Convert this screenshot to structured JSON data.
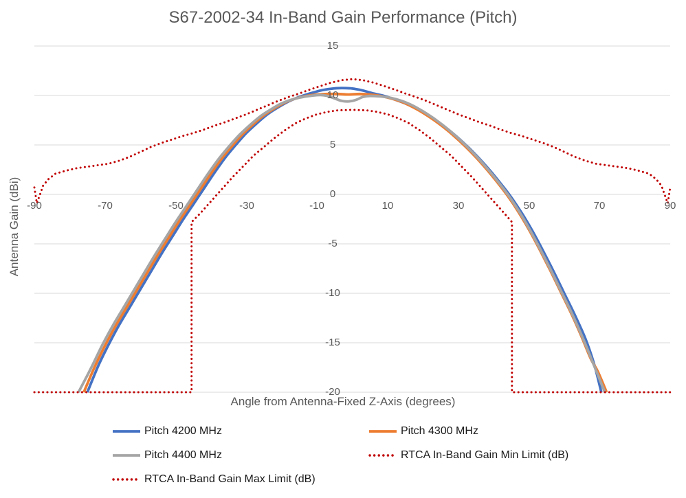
{
  "title": "S67-2002-34 In-Band Gain Performance (Pitch)",
  "colors": {
    "series_blue": "#4472C4",
    "series_orange": "#ED7D31",
    "series_gray": "#A5A5A5",
    "limit_dark_red": "#C00000",
    "gridline": "#D9D9D9",
    "axis_text": "#595959",
    "legend_text": "#1A1A1A",
    "background": "#FFFFFF"
  },
  "chart_data": {
    "type": "line",
    "title": "S67-2002-34 In-Band Gain Performance (Pitch)",
    "xlabel": "Angle from Antenna-Fixed Z-Axis (degrees)",
    "ylabel": "Antenna Gain (dBi)",
    "xlim": [
      -90,
      90
    ],
    "ylim": [
      -20,
      15
    ],
    "x_ticks": [
      -90,
      -70,
      -50,
      -30,
      -10,
      10,
      30,
      50,
      70,
      90
    ],
    "y_ticks": [
      15,
      10,
      5,
      0,
      -5,
      -10,
      -15,
      -20
    ],
    "x_tick_labels": [
      "-90",
      "-70",
      "-50",
      "-30",
      "-10",
      "10",
      "30",
      "50",
      "70",
      "90"
    ],
    "y_tick_labels": [
      "15",
      "10",
      "5",
      "0",
      "-5",
      "-10",
      "-15",
      "-20"
    ],
    "grid": "horizontal gridlines only, light gray",
    "legend_position": "bottom, two columns",
    "series": [
      {
        "name": "Pitch 4200 MHz",
        "color": "#4472C4",
        "style": "solid",
        "points": [
          [
            -75,
            -20
          ],
          [
            -72,
            -17.4
          ],
          [
            -69,
            -15.2
          ],
          [
            -66,
            -13.2
          ],
          [
            -63,
            -11.4
          ],
          [
            -60,
            -9.6
          ],
          [
            -57,
            -7.8
          ],
          [
            -54,
            -6
          ],
          [
            -51,
            -4.3
          ],
          [
            -48,
            -2.6
          ],
          [
            -45,
            -1
          ],
          [
            -42,
            0.6
          ],
          [
            -39,
            2.2
          ],
          [
            -36,
            3.7
          ],
          [
            -33,
            5
          ],
          [
            -30,
            6.2
          ],
          [
            -27,
            7.2
          ],
          [
            -24,
            8.1
          ],
          [
            -21,
            8.8
          ],
          [
            -18,
            9.4
          ],
          [
            -15,
            9.85
          ],
          [
            -12,
            10.2
          ],
          [
            -9,
            10.5
          ],
          [
            -6,
            10.68
          ],
          [
            -3,
            10.75
          ],
          [
            0,
            10.7
          ],
          [
            3,
            10.5
          ],
          [
            6,
            10.2
          ],
          [
            9,
            9.95
          ],
          [
            12,
            9.6
          ],
          [
            15,
            9.2
          ],
          [
            18,
            8.7
          ],
          [
            21,
            8.1
          ],
          [
            24,
            7.4
          ],
          [
            27,
            6.6
          ],
          [
            30,
            5.7
          ],
          [
            33,
            4.7
          ],
          [
            36,
            3.6
          ],
          [
            39,
            2.4
          ],
          [
            42,
            1.1
          ],
          [
            45,
            -0.3
          ],
          [
            48,
            -1.9
          ],
          [
            51,
            -3.7
          ],
          [
            54,
            -5.7
          ],
          [
            57,
            -7.8
          ],
          [
            60,
            -10
          ],
          [
            63,
            -12.2
          ],
          [
            66,
            -14.6
          ],
          [
            68.5,
            -17.2
          ],
          [
            70.5,
            -20
          ]
        ]
      },
      {
        "name": "Pitch 4300 MHz",
        "color": "#ED7D31",
        "style": "solid",
        "points": [
          [
            -76,
            -20
          ],
          [
            -73,
            -17.5
          ],
          [
            -70,
            -15.3
          ],
          [
            -67,
            -13.3
          ],
          [
            -64,
            -11.5
          ],
          [
            -61,
            -9.7
          ],
          [
            -58,
            -7.9
          ],
          [
            -55,
            -6.1
          ],
          [
            -52,
            -4.4
          ],
          [
            -49,
            -2.7
          ],
          [
            -46,
            -1.1
          ],
          [
            -43,
            0.5
          ],
          [
            -40,
            2.1
          ],
          [
            -37,
            3.6
          ],
          [
            -34,
            4.9
          ],
          [
            -31,
            6.1
          ],
          [
            -28,
            7.1
          ],
          [
            -25,
            8
          ],
          [
            -22,
            8.7
          ],
          [
            -19,
            9.3
          ],
          [
            -16,
            9.7
          ],
          [
            -13,
            9.95
          ],
          [
            -10,
            10.1
          ],
          [
            -7,
            10.15
          ],
          [
            -4,
            10.15
          ],
          [
            -1,
            10.1
          ],
          [
            2,
            10.15
          ],
          [
            5,
            10.1
          ],
          [
            8,
            9.95
          ],
          [
            11,
            9.7
          ],
          [
            14,
            9.35
          ],
          [
            17,
            8.85
          ],
          [
            20,
            8.25
          ],
          [
            23,
            7.55
          ],
          [
            26,
            6.75
          ],
          [
            29,
            5.85
          ],
          [
            32,
            4.85
          ],
          [
            35,
            3.75
          ],
          [
            38,
            2.55
          ],
          [
            41,
            1.25
          ],
          [
            44,
            -0.15
          ],
          [
            47,
            -1.75
          ],
          [
            50,
            -3.55
          ],
          [
            53,
            -5.55
          ],
          [
            56,
            -7.65
          ],
          [
            59,
            -9.85
          ],
          [
            62,
            -12.05
          ],
          [
            65,
            -14.45
          ],
          [
            67.5,
            -16.6
          ],
          [
            69.5,
            -17.9
          ],
          [
            72,
            -20
          ]
        ]
      },
      {
        "name": "Pitch 4400 MHz",
        "color": "#A5A5A5",
        "style": "solid",
        "points": [
          [
            -77.5,
            -20
          ],
          [
            -74,
            -17.6
          ],
          [
            -71,
            -15.4
          ],
          [
            -68,
            -13.4
          ],
          [
            -65,
            -11.6
          ],
          [
            -62,
            -9.8
          ],
          [
            -59,
            -8
          ],
          [
            -56,
            -6.2
          ],
          [
            -53,
            -4.5
          ],
          [
            -50,
            -2.8
          ],
          [
            -47,
            -1.2
          ],
          [
            -44,
            0.4
          ],
          [
            -41,
            2
          ],
          [
            -38,
            3.5
          ],
          [
            -35,
            4.8
          ],
          [
            -32,
            6
          ],
          [
            -29,
            7
          ],
          [
            -26,
            7.9
          ],
          [
            -23,
            8.6
          ],
          [
            -20,
            9.2
          ],
          [
            -17,
            9.6
          ],
          [
            -14,
            9.85
          ],
          [
            -11,
            10
          ],
          [
            -9,
            10.05
          ],
          [
            -7,
            9.95
          ],
          [
            -5,
            9.7
          ],
          [
            -3,
            9.45
          ],
          [
            -1,
            9.4
          ],
          [
            1,
            9.55
          ],
          [
            3,
            9.85
          ],
          [
            5,
            9.95
          ],
          [
            8,
            9.9
          ],
          [
            11,
            9.75
          ],
          [
            14,
            9.45
          ],
          [
            17,
            9
          ],
          [
            20,
            8.4
          ],
          [
            23,
            7.7
          ],
          [
            26,
            6.9
          ],
          [
            29,
            6
          ],
          [
            32,
            5
          ],
          [
            35,
            3.9
          ],
          [
            38,
            2.7
          ],
          [
            41,
            1.4
          ],
          [
            44,
            0
          ],
          [
            47,
            -1.6
          ],
          [
            50,
            -3.4
          ],
          [
            53,
            -5.4
          ],
          [
            56,
            -7.5
          ],
          [
            59,
            -9.7
          ],
          [
            62,
            -11.9
          ],
          [
            65,
            -14.3
          ],
          [
            68,
            -16.9
          ],
          [
            71.5,
            -20
          ]
        ]
      },
      {
        "name": "RTCA In-Band Gain Min Limit (dB)",
        "color": "#C00000",
        "style": "dotted",
        "points": [
          [
            -90,
            -20
          ],
          [
            -45.5,
            -20
          ],
          [
            -45.5,
            -2.8
          ],
          [
            -43,
            -1.9
          ],
          [
            -40,
            -0.7
          ],
          [
            -37,
            0.5
          ],
          [
            -34,
            1.7
          ],
          [
            -31,
            2.8
          ],
          [
            -28,
            3.9
          ],
          [
            -25,
            4.8
          ],
          [
            -22,
            5.7
          ],
          [
            -19,
            6.5
          ],
          [
            -16,
            7.2
          ],
          [
            -13,
            7.7
          ],
          [
            -10,
            8.1
          ],
          [
            -7,
            8.35
          ],
          [
            -4,
            8.5
          ],
          [
            0,
            8.55
          ],
          [
            4,
            8.5
          ],
          [
            7,
            8.35
          ],
          [
            10,
            8.1
          ],
          [
            13,
            7.7
          ],
          [
            16,
            7.2
          ],
          [
            19,
            6.5
          ],
          [
            22,
            5.7
          ],
          [
            25,
            4.8
          ],
          [
            28,
            3.9
          ],
          [
            31,
            2.8
          ],
          [
            34,
            1.7
          ],
          [
            37,
            0.5
          ],
          [
            40,
            -0.7
          ],
          [
            43,
            -1.9
          ],
          [
            45.2,
            -2.8
          ],
          [
            45.2,
            -20
          ],
          [
            90,
            -20
          ]
        ]
      },
      {
        "name": "RTCA In-Band Gain Max Limit (dB)",
        "color": "#C00000",
        "style": "dotted",
        "points": [
          [
            -90,
            0.7
          ],
          [
            -89.3,
            -0.9
          ],
          [
            -88.6,
            -0.2
          ],
          [
            -87.5,
            0.9
          ],
          [
            -86,
            1.55
          ],
          [
            -84,
            2.1
          ],
          [
            -81,
            2.4
          ],
          [
            -78,
            2.65
          ],
          [
            -75,
            2.8
          ],
          [
            -72,
            2.95
          ],
          [
            -69,
            3.1
          ],
          [
            -66,
            3.4
          ],
          [
            -63,
            3.8
          ],
          [
            -60,
            4.3
          ],
          [
            -57,
            4.8
          ],
          [
            -54,
            5.2
          ],
          [
            -51,
            5.55
          ],
          [
            -48,
            5.9
          ],
          [
            -45,
            6.2
          ],
          [
            -42,
            6.55
          ],
          [
            -39,
            6.95
          ],
          [
            -36,
            7.3
          ],
          [
            -33,
            7.7
          ],
          [
            -30,
            8.1
          ],
          [
            -27,
            8.55
          ],
          [
            -24,
            9
          ],
          [
            -21,
            9.45
          ],
          [
            -18,
            9.85
          ],
          [
            -15,
            10.2
          ],
          [
            -12,
            10.6
          ],
          [
            -9,
            10.95
          ],
          [
            -6,
            11.3
          ],
          [
            -3,
            11.55
          ],
          [
            0,
            11.65
          ],
          [
            3,
            11.55
          ],
          [
            6,
            11.3
          ],
          [
            9,
            10.95
          ],
          [
            12,
            10.6
          ],
          [
            15,
            10.2
          ],
          [
            18,
            9.85
          ],
          [
            21,
            9.45
          ],
          [
            24,
            9
          ],
          [
            27,
            8.55
          ],
          [
            30,
            8.1
          ],
          [
            33,
            7.7
          ],
          [
            36,
            7.3
          ],
          [
            39,
            6.95
          ],
          [
            42,
            6.55
          ],
          [
            45,
            6.2
          ],
          [
            48,
            5.9
          ],
          [
            51,
            5.55
          ],
          [
            54,
            5.2
          ],
          [
            57,
            4.8
          ],
          [
            60,
            4.3
          ],
          [
            63,
            3.8
          ],
          [
            66,
            3.4
          ],
          [
            69,
            3.1
          ],
          [
            72,
            2.95
          ],
          [
            75,
            2.8
          ],
          [
            78,
            2.65
          ],
          [
            81,
            2.4
          ],
          [
            84,
            2.1
          ],
          [
            86,
            1.55
          ],
          [
            87.5,
            0.9
          ],
          [
            88.6,
            -0.2
          ],
          [
            89.3,
            -0.9
          ],
          [
            90,
            0.7
          ]
        ]
      }
    ]
  }
}
